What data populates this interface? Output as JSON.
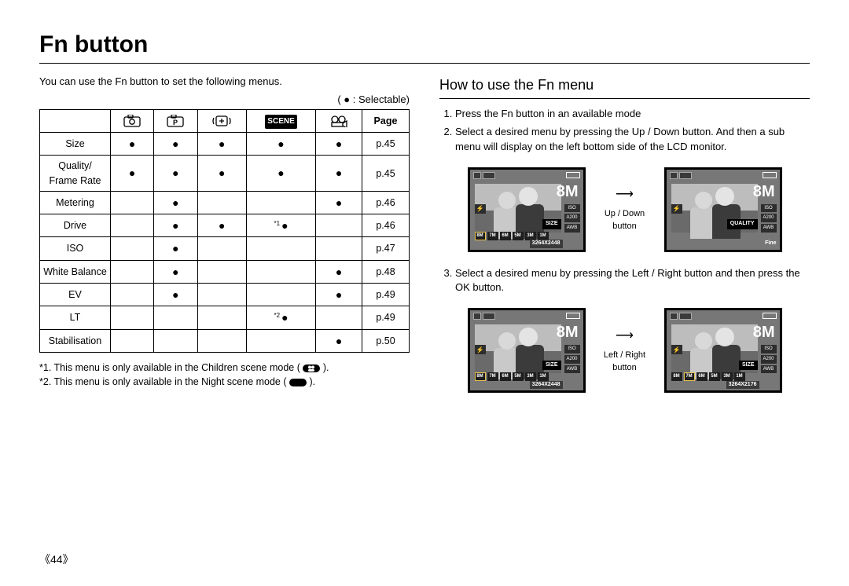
{
  "title": "Fn button",
  "intro": "You can use the Fn button to set the following menus.",
  "legend": "( ● : Selectable)",
  "table": {
    "iconHeads": [
      "camera",
      "camera-p",
      "shake",
      "SCENE",
      "movie"
    ],
    "pageHead": "Page",
    "rows": [
      {
        "label": "Size",
        "cells": [
          "●",
          "●",
          "●",
          "●",
          "●"
        ],
        "page": "p.45"
      },
      {
        "label": "Quality/\nFrame Rate",
        "cells": [
          "●",
          "●",
          "●",
          "●",
          "●"
        ],
        "page": "p.45"
      },
      {
        "label": "Metering",
        "cells": [
          "",
          "●",
          "",
          "",
          "●"
        ],
        "page": "p.46"
      },
      {
        "label": "Drive",
        "cells": [
          "",
          "●",
          "●",
          "*1●",
          ""
        ],
        "page": "p.46"
      },
      {
        "label": "ISO",
        "cells": [
          "",
          "●",
          "",
          "",
          ""
        ],
        "page": "p.47"
      },
      {
        "label": "White Balance",
        "cells": [
          "",
          "●",
          "",
          "",
          "●"
        ],
        "page": "p.48"
      },
      {
        "label": "EV",
        "cells": [
          "",
          "●",
          "",
          "",
          "●"
        ],
        "page": "p.49"
      },
      {
        "label": "LT",
        "cells": [
          "",
          "",
          "",
          "*2●",
          ""
        ],
        "page": "p.49"
      },
      {
        "label": "Stabilisation",
        "cells": [
          "",
          "",
          "",
          "",
          "●"
        ],
        "page": "p.50"
      }
    ]
  },
  "notes": {
    "n1_pre": "*1. This menu is only available in the Children scene mode ( ",
    "n1_post": " ).",
    "n2_pre": "*2. This menu is only available in the Night scene mode ( ",
    "n2_post": " )."
  },
  "right": {
    "subhead": "How to use the Fn menu",
    "step1": "Press the Fn button in an available mode",
    "step2": "Select a desired menu by pressing the Up / Down button. And then a sub menu will display on the left bottom side of the LCD monitor.",
    "step3": "Select a desired menu by pressing the Left / Right button and then press the OK button.",
    "arrow1": "Up / Down button",
    "arrow2": "Left / Right button"
  },
  "screens": {
    "sizeLabel": "SIZE",
    "qualityLabel": "QUALITY",
    "fine": "Fine",
    "res1": "3264X2448",
    "res2": "3264X2176",
    "chips": [
      "ISO",
      "A200",
      "AWB"
    ],
    "thumbs": [
      "8M",
      "7M",
      "6M",
      "5M",
      "3M",
      "1M"
    ],
    "big8": "8M"
  },
  "pageNum": "《44》"
}
